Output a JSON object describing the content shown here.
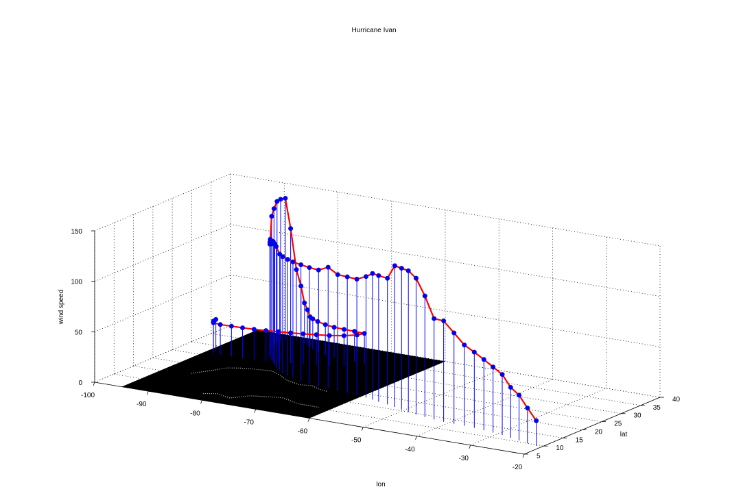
{
  "chart_data": {
    "type": "stem3",
    "title": "Hurricane Ivan",
    "xlabel": "lon",
    "ylabel": "lat",
    "zlabel": "wind speed",
    "xlim": [
      -100,
      -20
    ],
    "ylim": [
      5,
      40
    ],
    "zlim": [
      0,
      150
    ],
    "xticks": [
      -100,
      -90,
      -80,
      -70,
      -60,
      -50,
      -40,
      -30,
      -20
    ],
    "yticks": [
      5,
      10,
      15,
      20,
      25,
      30,
      35,
      40
    ],
    "zticks": [
      0,
      50,
      100,
      150
    ],
    "grid": true,
    "track_color": "#ff0000",
    "stem_color": "#0000ff",
    "marker_color": "#0000ff",
    "basemap_color": "#000000",
    "x": [
      -21.0,
      -23.0,
      -25.0,
      -27.0,
      -29.0,
      -31.0,
      -33.0,
      -35.0,
      -37.0,
      -39.0,
      -41.0,
      -43.0,
      -45.0,
      -47.0,
      -48.8,
      -50.5,
      -52.2,
      -54.0,
      -56.0,
      -57.5,
      -59.0,
      -61.0,
      -63.0,
      -65.0,
      -67.0,
      -69.0,
      -71.0,
      -73.0,
      -75.0,
      -76.5,
      -78.0,
      -79.2,
      -80.5,
      -81.5,
      -82.5,
      -83.5,
      -84.5,
      -85.3,
      -86.0,
      -86.8,
      -87.5,
      -88.0,
      -88.3,
      -88.5,
      -88.2,
      -87.5,
      -86.5,
      -85.5,
      -84.5,
      -83.5,
      -82.5,
      -81.5,
      -80.0,
      -78.0,
      -76.0,
      -74.0,
      -72.0,
      -70.0,
      -70.5,
      -72.0,
      -74.0,
      -76.0,
      -78.0,
      -80.0,
      -82.0,
      -84.0,
      -86.0,
      -88.0,
      -90.0,
      -92.0,
      -93.5,
      -94.0,
      -94.2
    ],
    "y": [
      9.5,
      10.0,
      10.6,
      11.2,
      11.8,
      12.2,
      12.6,
      12.9,
      13.1,
      13.2,
      13.3,
      13.6,
      14.0,
      14.5,
      15.0,
      15.6,
      16.2,
      16.8,
      17.3,
      17.8,
      18.2,
      18.6,
      18.9,
      19.2,
      19.5,
      19.8,
      20.2,
      20.8,
      21.5,
      22.2,
      23.0,
      23.9,
      24.8,
      25.8,
      26.8,
      27.8,
      28.8,
      29.8,
      30.8,
      32.0,
      33.3,
      34.6,
      35.8,
      37.0,
      37.8,
      38.2,
      38.3,
      38.1,
      37.6,
      37.0,
      36.3,
      35.6,
      34.8,
      34.0,
      33.5,
      33.3,
      33.2,
      33.0,
      31.8,
      30.5,
      29.5,
      28.9,
      28.3,
      27.8,
      27.4,
      27.0,
      26.7,
      26.5,
      26.4,
      26.3,
      26.6,
      27.3,
      28.2
    ],
    "z": [
      25,
      35,
      45,
      50,
      60,
      65,
      70,
      75,
      80,
      90,
      100,
      100,
      120,
      135,
      140,
      140,
      140,
      125,
      125,
      125,
      120,
      115,
      115,
      115,
      120,
      115,
      115,
      115,
      115,
      115,
      115,
      115,
      120,
      120,
      120,
      115,
      115,
      110,
      110,
      110,
      130,
      135,
      140,
      140,
      140,
      110,
      70,
      55,
      40,
      35,
      30,
      30,
      30,
      30,
      30,
      30,
      30,
      30,
      30,
      30,
      30,
      30,
      30,
      30,
      30,
      30,
      30,
      30,
      30,
      30,
      30,
      30,
      30
    ]
  }
}
